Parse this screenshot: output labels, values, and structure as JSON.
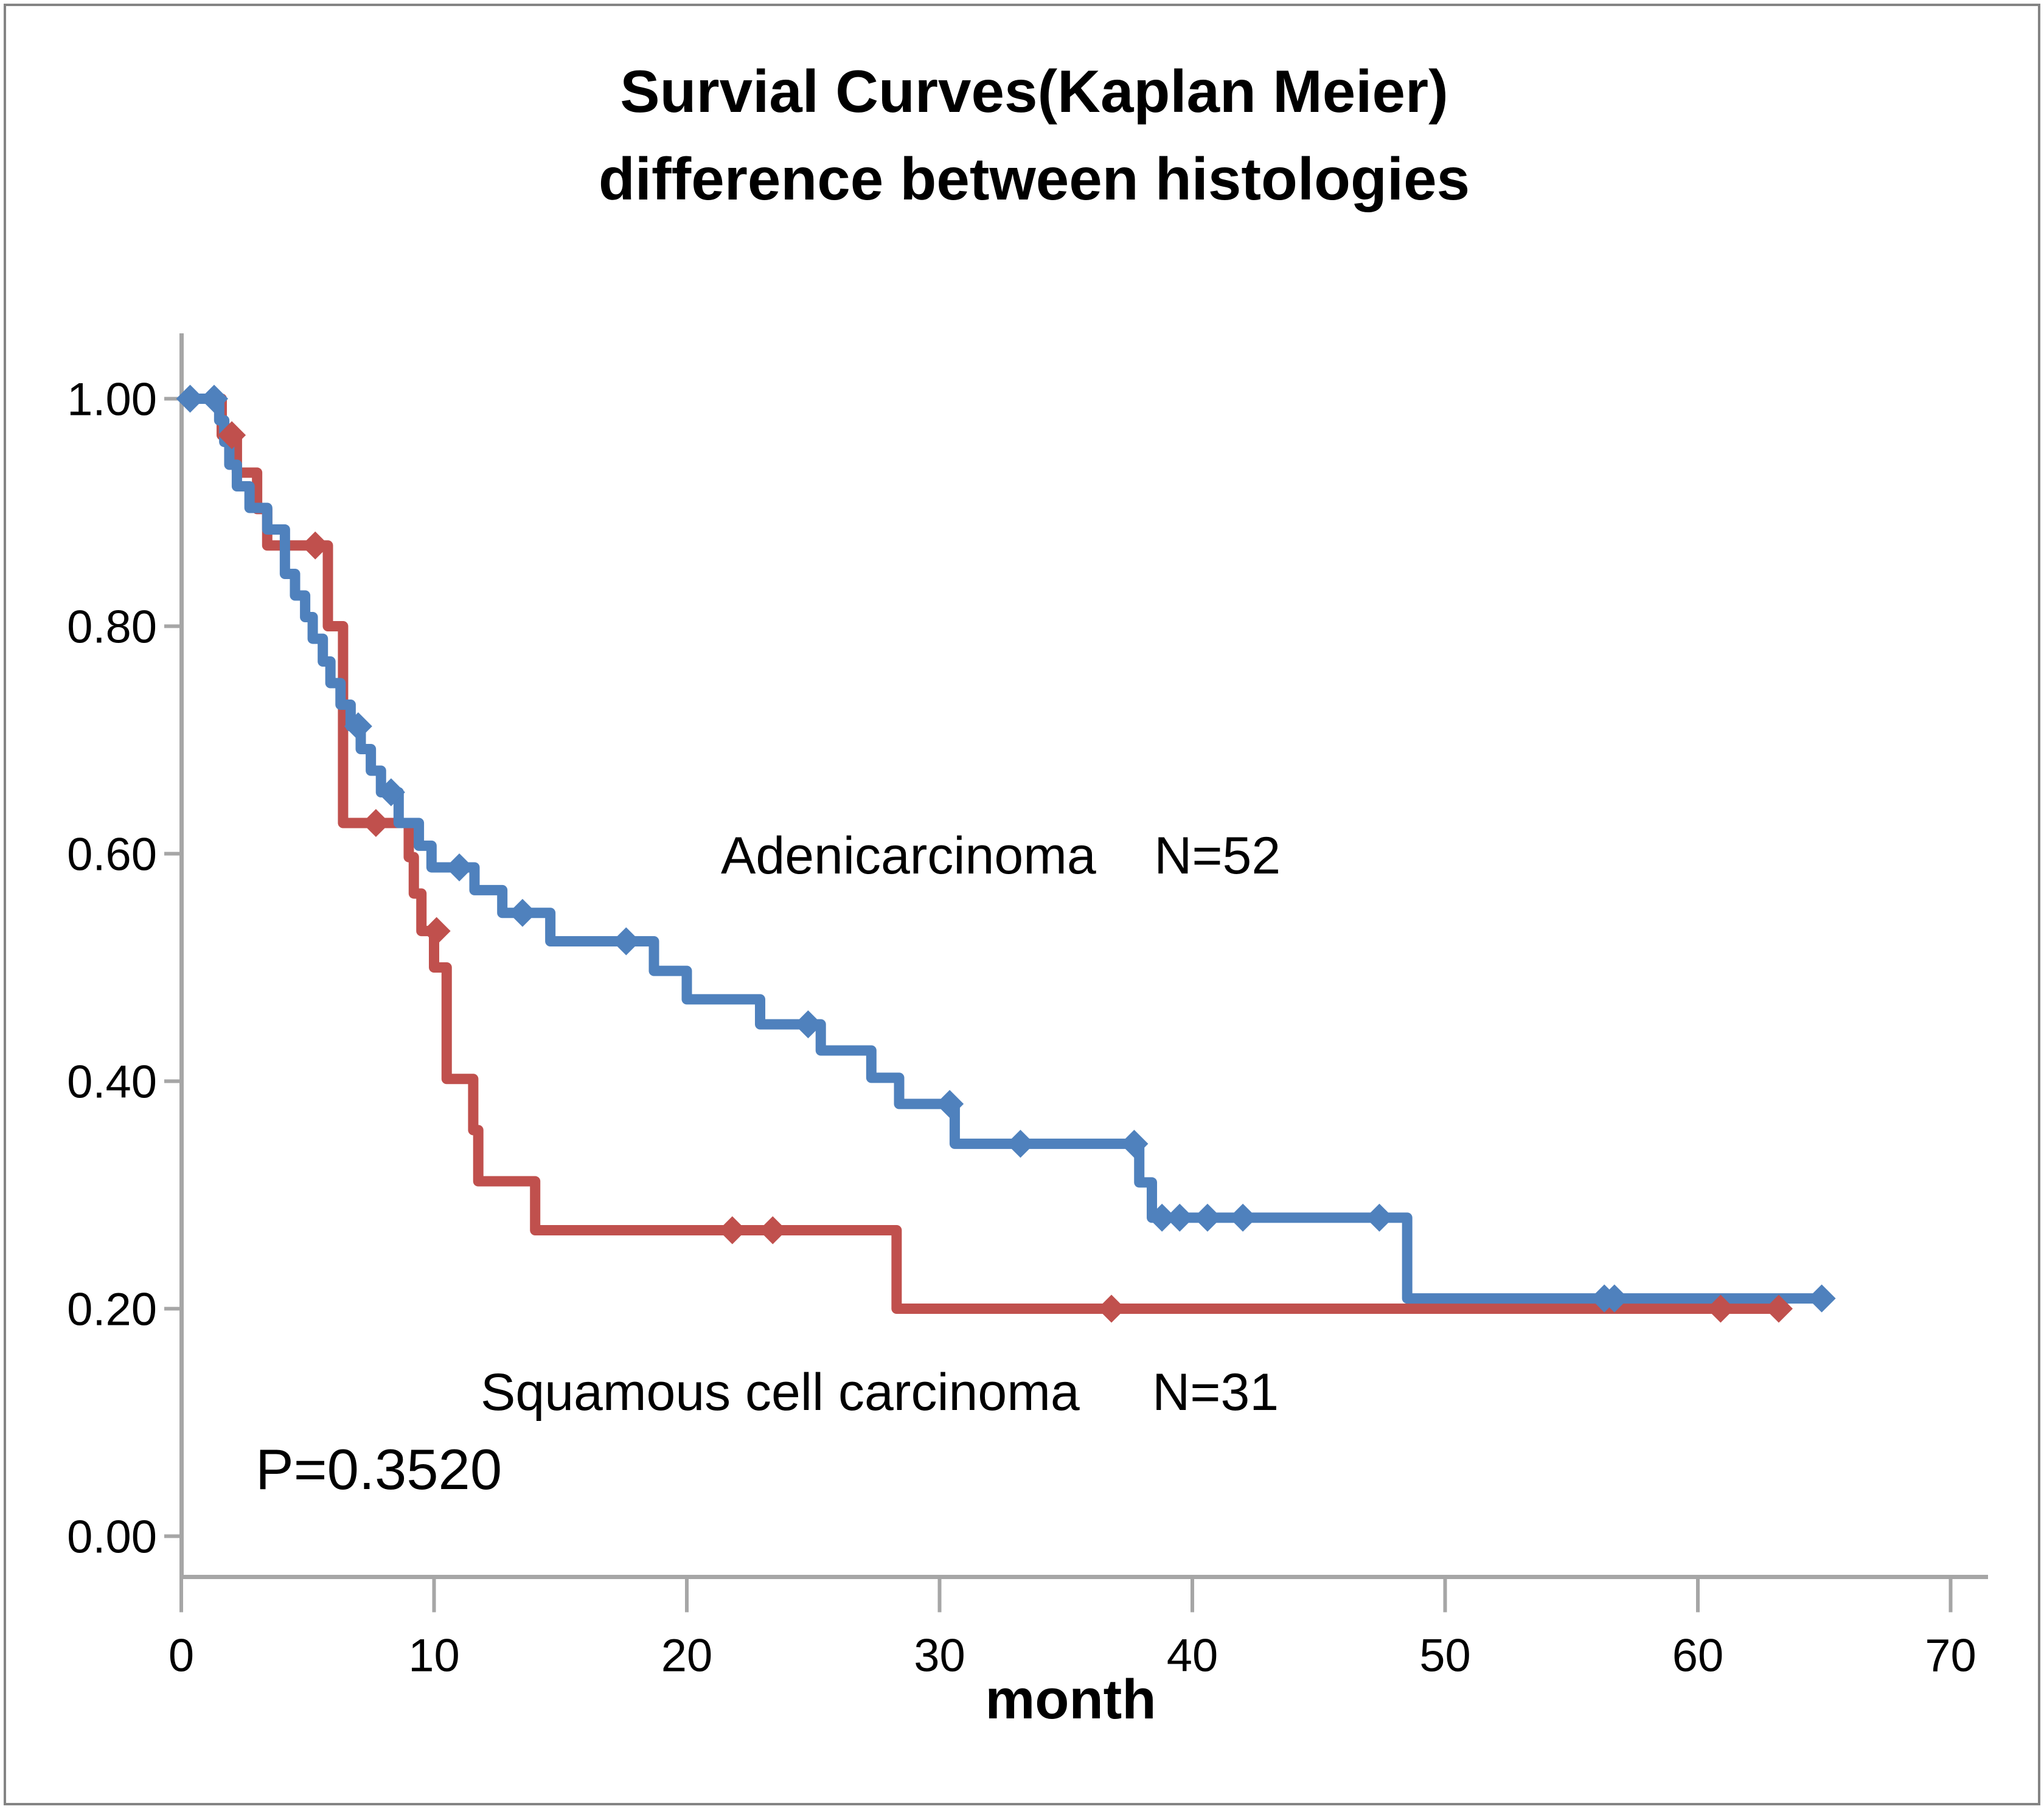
{
  "title": {
    "line1": "Survial Curves(Kaplan Meier)",
    "line2": "difference between histologies"
  },
  "p_value_label": "P=0.3520",
  "x_axis_title": "month",
  "chart_data": {
    "type": "line",
    "subtype": "kaplan-meier-step",
    "title": "Survial Curves(Kaplan Meier) difference between histologies",
    "xlabel": "month",
    "ylabel": "",
    "xlim": [
      0,
      70
    ],
    "ylim": [
      0,
      1
    ],
    "grid": false,
    "legend_position": "annotations-inside-plot",
    "x_ticks": [
      {
        "value": 0,
        "label": "0"
      },
      {
        "value": 10,
        "label": "10"
      },
      {
        "value": 20,
        "label": "20"
      },
      {
        "value": 30,
        "label": "30"
      },
      {
        "value": 40,
        "label": "40"
      },
      {
        "value": 50,
        "label": "50"
      },
      {
        "value": 60,
        "label": "60"
      },
      {
        "value": 70,
        "label": "70"
      }
    ],
    "y_ticks": [
      {
        "value": 0.0,
        "label": "0.00"
      },
      {
        "value": 0.2,
        "label": "0.20"
      },
      {
        "value": 0.4,
        "label": "0.40"
      },
      {
        "value": 0.6,
        "label": "0.60"
      },
      {
        "value": 0.8,
        "label": "0.80"
      },
      {
        "value": 1.0,
        "label": "1.00"
      }
    ],
    "axis_color": "#A6A6A6",
    "series": [
      {
        "name": "Squamous cell carcinoma",
        "n": 31,
        "annotation": "Squamous cell carcinoma     N=31",
        "color": "#C0504D",
        "marker": "diamond",
        "end_time": 63.3,
        "steps": [
          [
            0,
            1.0
          ],
          [
            1.6,
            0.968
          ],
          [
            2.2,
            0.935
          ],
          [
            3.0,
            0.903
          ],
          [
            3.4,
            0.871
          ],
          [
            5.8,
            0.8
          ],
          [
            6.4,
            0.627
          ],
          [
            9.0,
            0.597
          ],
          [
            9.2,
            0.565
          ],
          [
            9.5,
            0.532
          ],
          [
            10.0,
            0.5
          ],
          [
            10.5,
            0.402
          ],
          [
            11.55,
            0.357
          ],
          [
            11.75,
            0.312
          ],
          [
            14.0,
            0.269
          ],
          [
            28.3,
            0.2
          ]
        ],
        "censor_marks": [
          [
            2.0,
            0.968
          ],
          [
            5.3,
            0.871
          ],
          [
            7.7,
            0.627
          ],
          [
            10.1,
            0.532
          ],
          [
            21.8,
            0.269
          ],
          [
            23.4,
            0.269
          ],
          [
            36.8,
            0.2
          ],
          [
            60.9,
            0.2
          ],
          [
            63.2,
            0.2
          ]
        ]
      },
      {
        "name": "Adenicarcinoma",
        "n": 52,
        "annotation": "Adenicarcinoma    N=52",
        "color": "#4F81BD",
        "marker": "diamond",
        "end_time": 65.0,
        "steps": [
          [
            0,
            1.0
          ],
          [
            1.5,
            0.981
          ],
          [
            1.7,
            0.962
          ],
          [
            1.9,
            0.942
          ],
          [
            2.2,
            0.923
          ],
          [
            2.7,
            0.904
          ],
          [
            3.4,
            0.885
          ],
          [
            4.1,
            0.846
          ],
          [
            4.5,
            0.827
          ],
          [
            4.9,
            0.808
          ],
          [
            5.2,
            0.789
          ],
          [
            5.6,
            0.769
          ],
          [
            5.9,
            0.75
          ],
          [
            6.3,
            0.731
          ],
          [
            6.7,
            0.712
          ],
          [
            7.1,
            0.692
          ],
          [
            7.5,
            0.673
          ],
          [
            7.9,
            0.654
          ],
          [
            8.6,
            0.627
          ],
          [
            9.4,
            0.607
          ],
          [
            9.9,
            0.588
          ],
          [
            11.6,
            0.568
          ],
          [
            12.7,
            0.548
          ],
          [
            14.6,
            0.523
          ],
          [
            18.7,
            0.497
          ],
          [
            20.0,
            0.472
          ],
          [
            22.9,
            0.45
          ],
          [
            25.3,
            0.427
          ],
          [
            27.3,
            0.403
          ],
          [
            28.4,
            0.38
          ],
          [
            30.6,
            0.345
          ],
          [
            37.9,
            0.311
          ],
          [
            38.4,
            0.28
          ],
          [
            48.5,
            0.209
          ]
        ],
        "censor_marks": [
          [
            0.35,
            1.0
          ],
          [
            1.3,
            1.0
          ],
          [
            7.0,
            0.712
          ],
          [
            8.3,
            0.654
          ],
          [
            11.0,
            0.588
          ],
          [
            13.5,
            0.548
          ],
          [
            17.6,
            0.523
          ],
          [
            24.8,
            0.45
          ],
          [
            30.4,
            0.38
          ],
          [
            33.2,
            0.345
          ],
          [
            37.7,
            0.345
          ],
          [
            38.8,
            0.28
          ],
          [
            39.5,
            0.28
          ],
          [
            40.6,
            0.28
          ],
          [
            42.0,
            0.28
          ],
          [
            47.4,
            0.28
          ],
          [
            56.3,
            0.209
          ],
          [
            56.7,
            0.209
          ],
          [
            64.9,
            0.209
          ]
        ]
      }
    ],
    "annotations": [
      {
        "id": "adeno",
        "text": "Adenicarcinoma    N=52"
      },
      {
        "id": "squam",
        "text": "Squamous cell carcinoma     N=31"
      },
      {
        "id": "pval",
        "text": "P=0.3520"
      }
    ]
  },
  "colors": {
    "adenicarcinoma": "#4F81BD",
    "squamous": "#C0504D",
    "axis": "#A6A6A6",
    "border": "#848484",
    "text": "#000000",
    "background": "#FFFFFF"
  }
}
